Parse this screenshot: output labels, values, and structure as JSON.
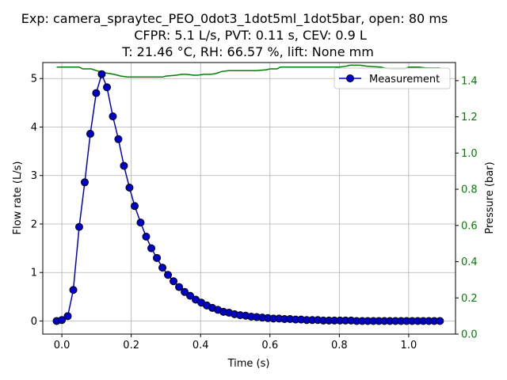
{
  "chart_data": {
    "type": "line",
    "title_lines": [
      "Exp: camera_spraytec_PEO_0dot3_1dot5ml_1dot5bar, open: 80 ms",
      "CFPR: 5.1 L/s, PVT: 0.11 s, CEV: 0.9 L",
      "T: 21.46 °C, RH: 66.57 %, lift: None mm"
    ],
    "xlabel": "Time (s)",
    "ylabel_left": "Flow rate (L/s)",
    "ylabel_right": "Pressure (bar)",
    "xlim": [
      -0.055,
      1.135
    ],
    "ylim_left": [
      -0.27,
      5.33
    ],
    "ylim_right": [
      0.0,
      1.5
    ],
    "xticks": [
      0.0,
      0.2,
      0.4,
      0.6,
      0.8,
      1.0
    ],
    "xtick_labels": [
      "0.0",
      "0.2",
      "0.4",
      "0.6",
      "0.8",
      "1.0"
    ],
    "yticks_left": [
      0,
      1,
      2,
      3,
      4,
      5
    ],
    "ytick_labels_left": [
      "0",
      "1",
      "2",
      "3",
      "4",
      "5"
    ],
    "yticks_right": [
      0.0,
      0.2,
      0.4,
      0.6,
      0.8,
      1.0,
      1.2,
      1.4
    ],
    "ytick_labels_right": [
      "0.0",
      "0.2",
      "0.4",
      "0.6",
      "0.8",
      "1.0",
      "1.2",
      "1.4"
    ],
    "grid": true,
    "legend_position": "top-right",
    "colors": {
      "flow": "#0000cc",
      "marker_face": "#0000cc",
      "marker_edge": "#000000",
      "pressure": "#008000",
      "right_axis": "#008000"
    },
    "series": [
      {
        "name": "Measurement",
        "axis": "left",
        "marker": "circle",
        "x": [
          -0.015,
          0.0,
          0.017,
          0.033,
          0.05,
          0.066,
          0.082,
          0.099,
          0.115,
          0.13,
          0.147,
          0.163,
          0.179,
          0.195,
          0.21,
          0.227,
          0.243,
          0.258,
          0.274,
          0.29,
          0.306,
          0.322,
          0.338,
          0.354,
          0.37,
          0.386,
          0.402,
          0.418,
          0.434,
          0.45,
          0.466,
          0.482,
          0.498,
          0.514,
          0.53,
          0.546,
          0.562,
          0.578,
          0.594,
          0.61,
          0.626,
          0.642,
          0.658,
          0.674,
          0.69,
          0.706,
          0.722,
          0.738,
          0.754,
          0.77,
          0.786,
          0.802,
          0.818,
          0.834,
          0.85,
          0.866,
          0.882,
          0.898,
          0.914,
          0.93,
          0.946,
          0.962,
          0.978,
          0.994,
          1.01,
          1.026,
          1.042,
          1.058,
          1.074,
          1.09
        ],
        "values": [
          0.0,
          0.02,
          0.1,
          0.64,
          1.94,
          2.86,
          3.86,
          4.7,
          5.09,
          4.82,
          4.22,
          3.75,
          3.2,
          2.75,
          2.37,
          2.03,
          1.74,
          1.5,
          1.3,
          1.1,
          0.95,
          0.82,
          0.7,
          0.6,
          0.52,
          0.44,
          0.38,
          0.32,
          0.27,
          0.23,
          0.19,
          0.17,
          0.14,
          0.12,
          0.11,
          0.09,
          0.08,
          0.07,
          0.06,
          0.05,
          0.05,
          0.04,
          0.04,
          0.03,
          0.03,
          0.02,
          0.02,
          0.02,
          0.01,
          0.01,
          0.01,
          0.01,
          0.01,
          0.01,
          0.0,
          0.0,
          0.0,
          0.0,
          0.0,
          0.0,
          0.0,
          0.0,
          0.0,
          0.0,
          0.0,
          0.0,
          0.0,
          0.0,
          0.0,
          0.0
        ]
      },
      {
        "name": "",
        "axis": "right",
        "marker": "none",
        "x": [
          -0.015,
          0.05,
          0.06,
          0.085,
          0.1,
          0.12,
          0.15,
          0.17,
          0.19,
          0.24,
          0.29,
          0.3,
          0.33,
          0.345,
          0.36,
          0.38,
          0.39,
          0.41,
          0.42,
          0.43,
          0.445,
          0.46,
          0.48,
          0.52,
          0.56,
          0.59,
          0.6,
          0.62,
          0.63,
          0.65,
          0.68,
          0.72,
          0.76,
          0.8,
          0.82,
          0.83,
          0.86,
          0.88,
          0.92,
          0.93,
          0.95,
          0.99,
          1.0,
          1.03,
          1.05,
          1.09
        ],
        "values": [
          1.475,
          1.475,
          1.465,
          1.465,
          1.455,
          1.445,
          1.435,
          1.425,
          1.42,
          1.42,
          1.42,
          1.425,
          1.43,
          1.435,
          1.435,
          1.43,
          1.43,
          1.435,
          1.435,
          1.435,
          1.44,
          1.45,
          1.455,
          1.455,
          1.455,
          1.46,
          1.465,
          1.465,
          1.475,
          1.475,
          1.475,
          1.475,
          1.475,
          1.475,
          1.48,
          1.485,
          1.485,
          1.48,
          1.475,
          1.47,
          1.465,
          1.465,
          1.475,
          1.475,
          1.47,
          1.47
        ]
      }
    ]
  }
}
